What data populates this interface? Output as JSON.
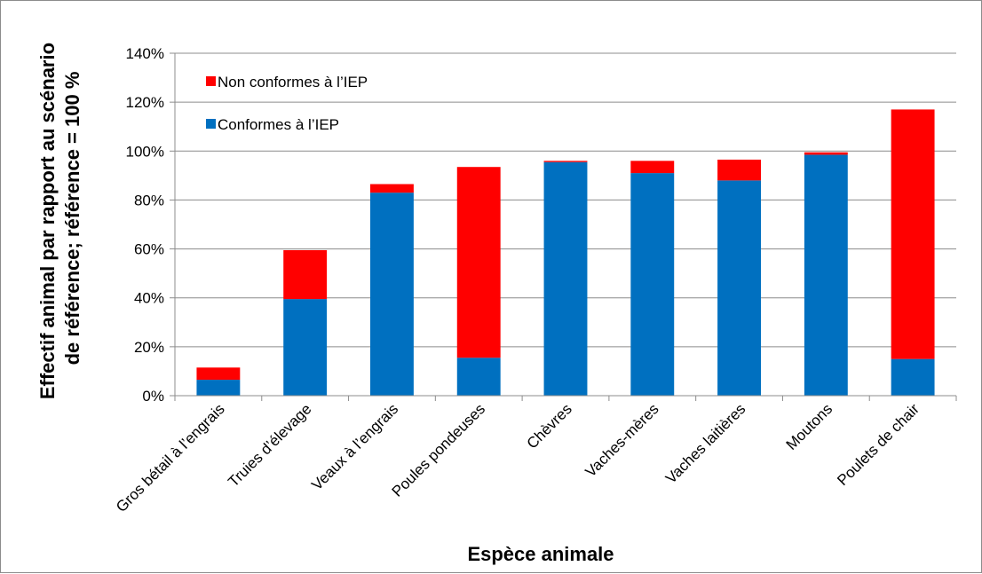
{
  "chart_data": {
    "type": "bar",
    "stacked": true,
    "categories": [
      "Gros bétail à l’engrais",
      "Truies d’élevage",
      "Veaux à l’engrais",
      "Poules pondeuses",
      "Chèvres",
      "Vaches-mères",
      "Vaches laitières",
      "Moutons",
      "Poulets de chair"
    ],
    "series": [
      {
        "name": "Conformes à l’IEP",
        "color": "#0070c0",
        "values": [
          6.5,
          39.5,
          83,
          15.5,
          95.5,
          91,
          88,
          98.5,
          15
        ]
      },
      {
        "name": "Non conformes à l’IEP",
        "color": "#ff0000",
        "values": [
          5,
          20,
          3.5,
          78,
          0.5,
          5,
          8.5,
          1,
          102
        ]
      }
    ],
    "xlabel": "Espèce animale",
    "ylabel": "Effectif animal par rapport au scénario de référence; référence = 100 %",
    "ylabel_lines": [
      "Effectif animal par rapport au scénario",
      "de référence; référence = 100 %"
    ],
    "ylim": [
      0,
      140
    ],
    "yticks": [
      0,
      20,
      40,
      60,
      80,
      100,
      120,
      140
    ],
    "ytick_labels": [
      "0%",
      "20%",
      "40%",
      "60%",
      "80%",
      "100%",
      "120%",
      "140%"
    ],
    "grid": true,
    "legend_position": "top-left",
    "legend_order": [
      "Non conformes à l’IEP",
      "Conformes à l’IEP"
    ]
  }
}
